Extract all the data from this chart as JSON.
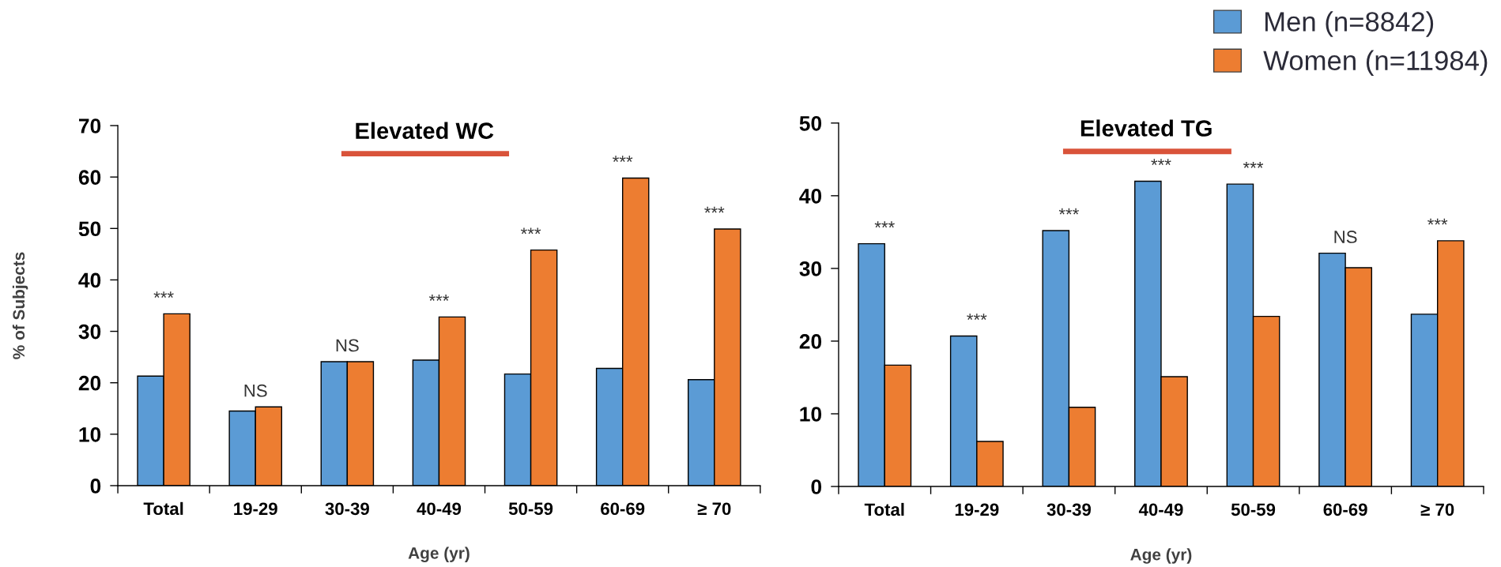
{
  "chart_data": [
    {
      "type": "bar",
      "title": "Elevated WC",
      "categories": [
        "Total",
        "19-29",
        "30-39",
        "40-49",
        "50-59",
        "60-69",
        "≥ 70"
      ],
      "series": [
        {
          "color": "#5b9bd5",
          "values": [
            21.3,
            14.5,
            24.1,
            24.4,
            21.7,
            22.8,
            20.6
          ]
        },
        {
          "color": "#ed7d31",
          "values": [
            33.4,
            15.3,
            24.1,
            32.8,
            45.8,
            59.8,
            49.9
          ]
        }
      ],
      "xlabel": "Age (yr)",
      "ylabel": "% of Subjects",
      "ylim": [
        0,
        70
      ],
      "yticks": [
        0,
        10,
        20,
        30,
        40,
        50,
        60,
        70
      ],
      "annotations": [
        {
          "text": "***",
          "x": "Total",
          "y": 33.4
        },
        {
          "text": "NS",
          "x": "19-29",
          "y": 15.3
        },
        {
          "text": "NS",
          "x": "30-39",
          "y": 24.1
        },
        {
          "text": "***",
          "x": "40-49",
          "y": 32.8
        },
        {
          "text": "***",
          "x": "50-59",
          "y": 45.8
        },
        {
          "text": "***",
          "x": "60-69",
          "y": 59.8
        },
        {
          "text": "***",
          "x": "≥ 70",
          "y": 49.9
        }
      ]
    },
    {
      "type": "bar",
      "title": "Elevated TG",
      "categories": [
        "Total",
        "19-29",
        "30-39",
        "40-49",
        "50-59",
        "60-69",
        "≥ 70"
      ],
      "series": [
        {
          "name": "Men (n=8842)",
          "color": "#5b9bd5",
          "values": [
            33.4,
            20.7,
            35.2,
            42.0,
            41.6,
            32.1,
            23.7
          ]
        },
        {
          "name": "Women (n=11984)",
          "color": "#ed7d31",
          "values": [
            16.7,
            6.2,
            10.9,
            15.1,
            23.4,
            30.1,
            33.8
          ]
        }
      ],
      "xlabel": "Age (yr)",
      "ylim": [
        0,
        50
      ],
      "yticks": [
        0,
        10,
        20,
        30,
        40,
        50
      ],
      "legend": "top right",
      "annotations": [
        {
          "text": "***",
          "x": "Total",
          "y": 33.4
        },
        {
          "text": "***",
          "x": "19-29",
          "y": 20.7
        },
        {
          "text": "***",
          "x": "30-39",
          "y": 35.2
        },
        {
          "text": "***",
          "x": "40-49",
          "y": 42.0
        },
        {
          "text": "***",
          "x": "50-59",
          "y": 41.6
        },
        {
          "text": "NS",
          "x": "60-69",
          "y": 32.1
        },
        {
          "text": "***",
          "x": "≥ 70",
          "y": 33.8
        }
      ]
    }
  ]
}
